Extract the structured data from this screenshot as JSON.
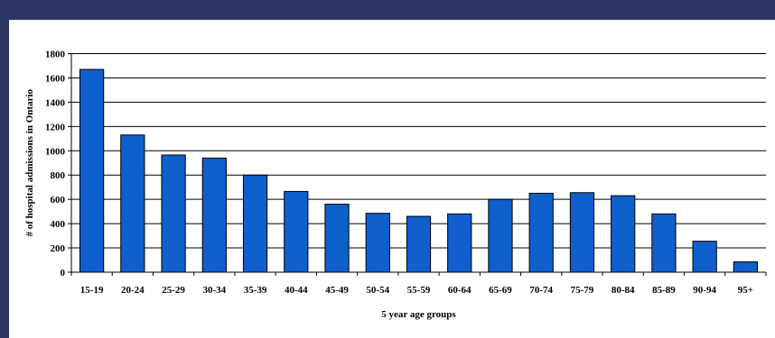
{
  "colors": {
    "background": "#2d3461",
    "plot_background": "#ffffff",
    "bar_fill": "#0f5fcd",
    "bar_stroke": "#000000",
    "grid": "#000000"
  },
  "chart_data": {
    "type": "bar",
    "title": "",
    "xlabel": "5 year age groups",
    "ylabel": "# of hospital admissions in Ontario",
    "categories": [
      "15-19",
      "20-24",
      "25-29",
      "30-34",
      "35-39",
      "40-44",
      "45-49",
      "50-54",
      "55-59",
      "60-64",
      "65-69",
      "70-74",
      "75-79",
      "80-84",
      "85-89",
      "90-94",
      "95+"
    ],
    "values": [
      1670,
      1130,
      965,
      940,
      800,
      665,
      560,
      485,
      460,
      480,
      600,
      650,
      655,
      630,
      480,
      255,
      85
    ],
    "ylim": [
      0,
      1800
    ],
    "yticks": [
      "0",
      "200",
      "400",
      "600",
      "800",
      "1000",
      "1200",
      "1400",
      "1600",
      "1800"
    ],
    "grid": true,
    "legend": "none"
  }
}
